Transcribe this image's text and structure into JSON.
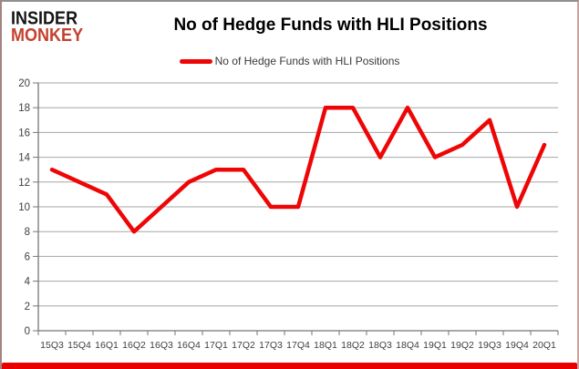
{
  "logo": {
    "line1": "INSIDER",
    "line2": "MONKEY"
  },
  "legend": {
    "label": "No of Hedge Funds with HLI Positions"
  },
  "colors": {
    "series_red": "#ee0606",
    "legend_red": "#ee0606",
    "bottom_band_red": "#e90000",
    "logo_red": "#c4402e",
    "grid_gray": "#a6a6a6",
    "axis_gray": "#767676",
    "tick_text": "#3f3f3f"
  },
  "chart_data": {
    "type": "line",
    "title": "No of Hedge Funds with HLI Positions",
    "categories": [
      "15Q3",
      "15Q4",
      "16Q1",
      "16Q2",
      "16Q3",
      "16Q4",
      "17Q1",
      "17Q2",
      "17Q3",
      "17Q4",
      "18Q1",
      "18Q2",
      "18Q3",
      "18Q4",
      "19Q1",
      "19Q2",
      "19Q3",
      "19Q4",
      "20Q1"
    ],
    "series": [
      {
        "name": "No of Hedge Funds with HLI Positions",
        "values": [
          13,
          12,
          11,
          8,
          10,
          12,
          13,
          13,
          10,
          10,
          18,
          18,
          14,
          18,
          14,
          15,
          17,
          10,
          15
        ]
      }
    ],
    "xlabel": "",
    "ylabel": "",
    "ylim": [
      0,
      20
    ],
    "ytick_step": 2,
    "grid": "horizontal",
    "legend_position": "top-center"
  }
}
